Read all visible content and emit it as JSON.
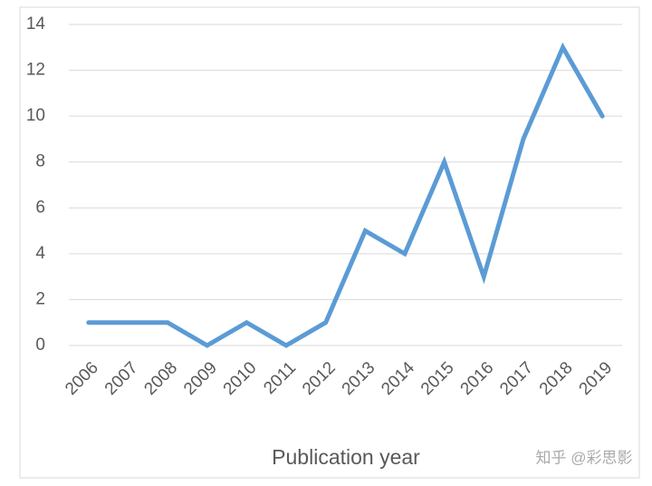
{
  "chart_data": {
    "type": "line",
    "x_label": "Publication year",
    "watermark": "知乎 @彩思影",
    "categories": [
      "2006",
      "2007",
      "2008",
      "2009",
      "2010",
      "2011",
      "2012",
      "2013",
      "2014",
      "2015",
      "2016",
      "2017",
      "2018",
      "2019"
    ],
    "values": [
      1,
      1,
      1,
      0,
      1,
      0,
      1,
      5,
      4,
      8,
      3,
      9,
      13,
      10
    ],
    "color": "#5b9bd5",
    "ylim": [
      0,
      14
    ],
    "yticks": [
      0,
      2,
      4,
      6,
      8,
      10,
      12,
      14
    ],
    "grid": true
  }
}
